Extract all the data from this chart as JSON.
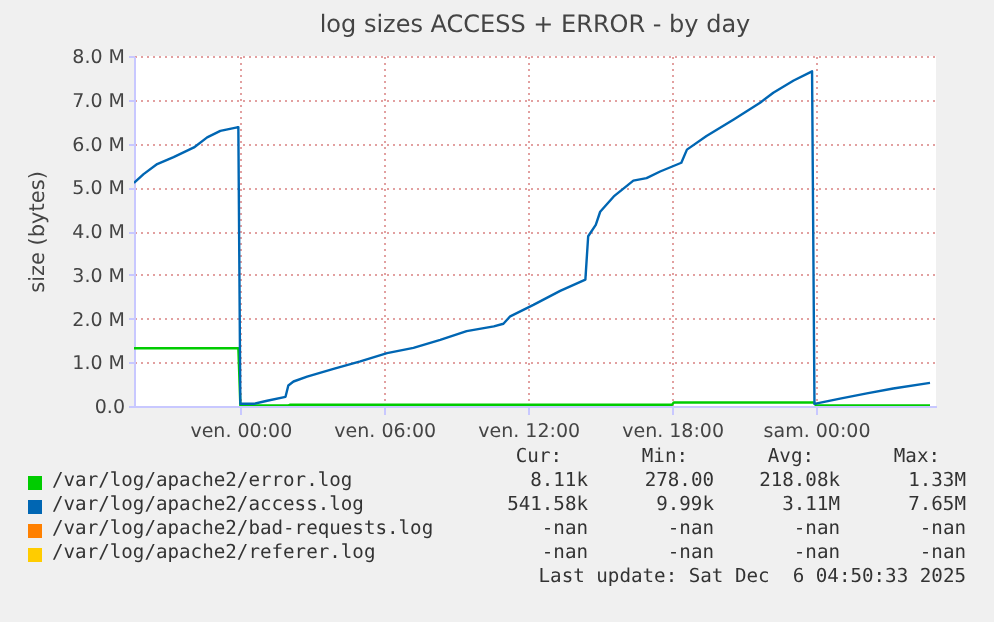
{
  "chart_data": {
    "type": "line",
    "title": "log sizes ACCESS + ERROR - by day",
    "ylabel": "size (bytes)",
    "xlim": [
      "2025-12-04T19:34",
      "2025-12-06T05:00"
    ],
    "xticks": [
      {
        "value": "2025-12-05T00:00",
        "label": "ven. 00:00"
      },
      {
        "value": "2025-12-05T06:00",
        "label": "ven. 06:00"
      },
      {
        "value": "2025-12-05T12:00",
        "label": "ven. 12:00"
      },
      {
        "value": "2025-12-05T18:00",
        "label": "ven. 18:00"
      },
      {
        "value": "2025-12-06T00:00",
        "label": "sam. 00:00"
      }
    ],
    "ylim": [
      0,
      8000000
    ],
    "yticks": [
      {
        "value": 0,
        "label": "0.0"
      },
      {
        "value": 1000000,
        "label": "1.0 M"
      },
      {
        "value": 2000000,
        "label": "2.0 M"
      },
      {
        "value": 3000000,
        "label": "3.0 M"
      },
      {
        "value": 4000000,
        "label": "4.0 M"
      },
      {
        "value": 5000000,
        "label": "5.0 M"
      },
      {
        "value": 6000000,
        "label": "6.0 M"
      },
      {
        "value": 7000000,
        "label": "7.0 M"
      },
      {
        "value": 8000000,
        "label": "8.0 M"
      }
    ],
    "grid": true,
    "legend": "bottom",
    "series": [
      {
        "name": "/var/log/apache2/error.log",
        "color": "#00cc00",
        "x": [
          "2025-12-04T19:34",
          "2025-12-04T23:55",
          "2025-12-05T00:00",
          "2025-12-05T02:00",
          "2025-12-05T02:05",
          "2025-12-05T18:00",
          "2025-12-05T18:04",
          "2025-12-05T23:54",
          "2025-12-06T00:00",
          "2025-12-06T04:45"
        ],
        "values": [
          1320000,
          1320000,
          10000,
          10000,
          30000,
          30000,
          80000,
          80000,
          10000,
          10000
        ]
      },
      {
        "name": "/var/log/apache2/access.log",
        "color": "#0066b3",
        "x": [
          "2025-12-04T19:34",
          "2025-12-04T19:58",
          "2025-12-04T20:32",
          "2025-12-04T21:13",
          "2025-12-04T22:04",
          "2025-12-04T22:37",
          "2025-12-04T23:10",
          "2025-12-04T23:52",
          "2025-12-04T23:55",
          "2025-12-05T00:00",
          "2025-12-05T00:34",
          "2025-12-05T01:07",
          "2025-12-05T01:53",
          "2025-12-05T02:00",
          "2025-12-05T02:13",
          "2025-12-05T02:47",
          "2025-12-05T03:53",
          "2025-12-05T05:00",
          "2025-12-05T06:07",
          "2025-12-05T07:13",
          "2025-12-05T08:20",
          "2025-12-05T09:26",
          "2025-12-05T10:34",
          "2025-12-05T10:58",
          "2025-12-05T11:15",
          "2025-12-05T12:13",
          "2025-12-05T13:20",
          "2025-12-05T14:23",
          "2025-12-05T14:30",
          "2025-12-05T14:49",
          "2025-12-05T15:00",
          "2025-12-05T15:34",
          "2025-12-05T16:23",
          "2025-12-05T16:56",
          "2025-12-05T17:30",
          "2025-12-05T18:23",
          "2025-12-05T18:37",
          "2025-12-05T19:26",
          "2025-12-05T20:34",
          "2025-12-05T21:40",
          "2025-12-05T22:13",
          "2025-12-05T23:04",
          "2025-12-05T23:50",
          "2025-12-05T23:56",
          "2025-12-06T01:00",
          "2025-12-06T02:07",
          "2025-12-06T03:13",
          "2025-12-06T04:45"
        ],
        "values": [
          5100000,
          5300000,
          5530000,
          5690000,
          5910000,
          6140000,
          6290000,
          6370000,
          6370000,
          50000,
          50000,
          120000,
          210000,
          470000,
          560000,
          670000,
          850000,
          1020000,
          1210000,
          1330000,
          1510000,
          1710000,
          1820000,
          1880000,
          2050000,
          2310000,
          2630000,
          2890000,
          3880000,
          4140000,
          4440000,
          4790000,
          5150000,
          5210000,
          5360000,
          5560000,
          5860000,
          6170000,
          6550000,
          6930000,
          7160000,
          7440000,
          7650000,
          50000,
          170000,
          290000,
          400000,
          530000
        ]
      },
      {
        "name": "/var/log/apache2/bad-requests.log",
        "color": "#ff8000"
      },
      {
        "name": "/var/log/apache2/referer.log",
        "color": "#ffcc00"
      }
    ],
    "annotations": [
      "Cur:",
      "Min:",
      "Avg:",
      "Max:",
      "8.11k",
      "278.00",
      "218.08k",
      "1.33M",
      "541.58k",
      "9.99k",
      "3.11M",
      "7.65M",
      "-nan",
      "-nan",
      "-nan",
      "-nan",
      "-nan",
      "-nan",
      "-nan",
      "-nan",
      "Last update: Sat Dec  6 04:50:33 2025"
    ]
  }
}
